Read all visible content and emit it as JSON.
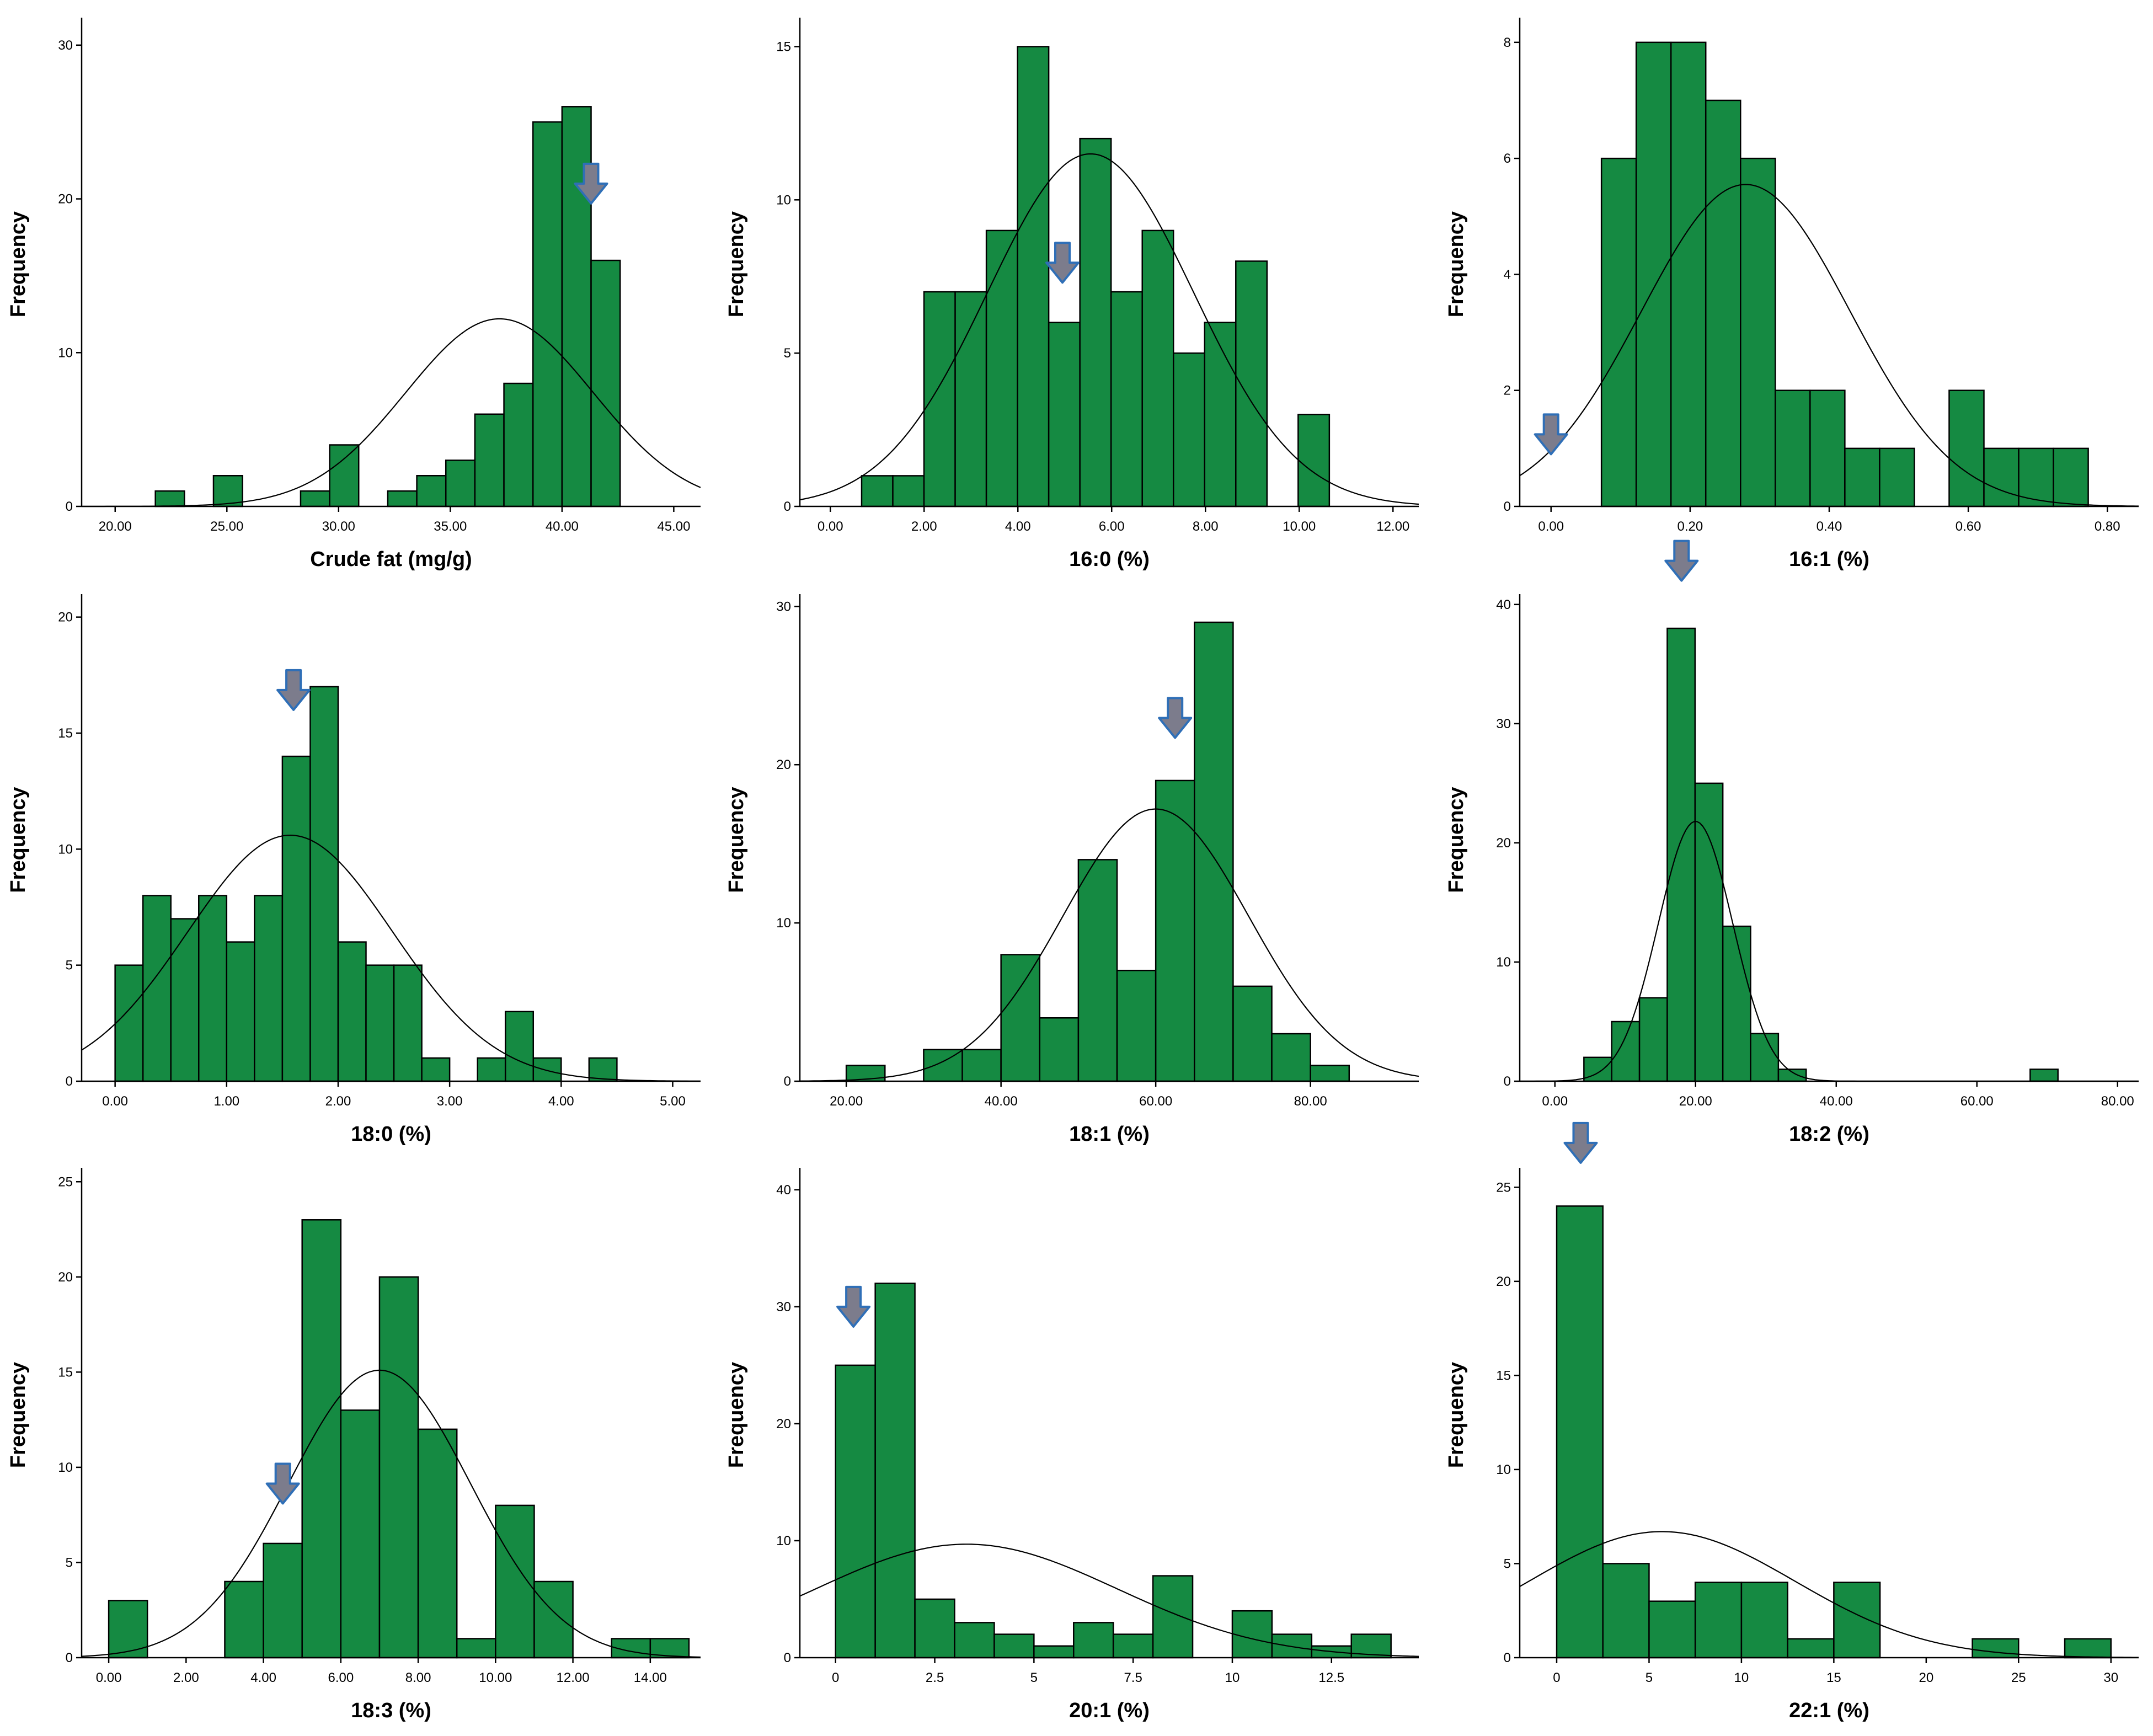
{
  "colors": {
    "bar": "#158A42",
    "arrow_fill": "#7C7C8C",
    "arrow_stroke": "#2F6FB7"
  },
  "chart_data": [
    {
      "type": "bar",
      "subtype": "histogram",
      "title": "",
      "xlabel": "Crude fat (mg/g)",
      "ylabel": "Frequency",
      "xlim": [
        18.5,
        46.2
      ],
      "ylim": [
        0,
        31.5
      ],
      "xticks": [
        20,
        25,
        30,
        35,
        40,
        45
      ],
      "xtick_labels": [
        "20.00",
        "25.00",
        "30.00",
        "35.00",
        "40.00",
        "45.00"
      ],
      "yticks": [
        0,
        10,
        20,
        30
      ],
      "ytick_labels": [
        "0",
        "10",
        "20",
        "30"
      ],
      "bin_width": 1.3,
      "bins": [
        [
          22.45,
          1
        ],
        [
          25.05,
          2
        ],
        [
          28.95,
          1
        ],
        [
          30.25,
          4
        ],
        [
          32.85,
          1
        ],
        [
          34.15,
          2
        ],
        [
          35.45,
          3
        ],
        [
          36.75,
          6
        ],
        [
          38.05,
          8
        ],
        [
          39.35,
          25
        ],
        [
          40.65,
          26
        ],
        [
          41.95,
          16
        ]
      ],
      "normal_curve": {
        "mean": 37.2,
        "sd": 4.2,
        "peak": 12.2
      },
      "arrow_x": 41.3,
      "arrow_y": 19.7
    },
    {
      "type": "bar",
      "subtype": "histogram",
      "title": "",
      "xlabel": "16:0 (%)",
      "ylabel": "Frequency",
      "xlim": [
        -0.65,
        12.55
      ],
      "ylim": [
        0,
        15.8
      ],
      "xticks": [
        0,
        2,
        4,
        6,
        8,
        10,
        12
      ],
      "xtick_labels": [
        "0.00",
        "2.00",
        "4.00",
        "6.00",
        "8.00",
        "10.00",
        "12.00"
      ],
      "yticks": [
        0,
        5,
        10,
        15
      ],
      "ytick_labels": [
        "0",
        "5",
        "10",
        "15"
      ],
      "bin_width": 0.665,
      "bins": [
        [
          1.0,
          1
        ],
        [
          1.665,
          1
        ],
        [
          2.33,
          7
        ],
        [
          2.995,
          7
        ],
        [
          3.66,
          9
        ],
        [
          4.325,
          15
        ],
        [
          4.99,
          6
        ],
        [
          5.655,
          12
        ],
        [
          6.32,
          7
        ],
        [
          6.985,
          9
        ],
        [
          7.65,
          5
        ],
        [
          8.315,
          6
        ],
        [
          8.98,
          8
        ],
        [
          10.31,
          3
        ]
      ],
      "normal_curve": {
        "mean": 5.55,
        "sd": 2.2,
        "peak": 11.5
      },
      "arrow_x": 4.95,
      "arrow_y": 7.3
    },
    {
      "type": "bar",
      "subtype": "histogram",
      "title": "",
      "xlabel": "16:1 (%)",
      "ylabel": "Frequency",
      "xlim": [
        -0.045,
        0.845
      ],
      "ylim": [
        0,
        8.35
      ],
      "xticks": [
        0,
        0.2,
        0.4,
        0.6,
        0.8
      ],
      "xtick_labels": [
        "0.00",
        "0.20",
        "0.40",
        "0.60",
        "0.80"
      ],
      "yticks": [
        0,
        2,
        4,
        6,
        8
      ],
      "ytick_labels": [
        "0",
        "2",
        "4",
        "6",
        "8"
      ],
      "bin_width": 0.05,
      "bins": [
        [
          0.0975,
          6
        ],
        [
          0.1475,
          8
        ],
        [
          0.1975,
          8
        ],
        [
          0.2475,
          7
        ],
        [
          0.2975,
          6
        ],
        [
          0.3475,
          2
        ],
        [
          0.3975,
          2
        ],
        [
          0.4475,
          1
        ],
        [
          0.4975,
          1
        ],
        [
          0.5975,
          2
        ],
        [
          0.6475,
          1
        ],
        [
          0.6975,
          1
        ],
        [
          0.7475,
          1
        ]
      ],
      "normal_curve": {
        "mean": 0.28,
        "sd": 0.15,
        "peak": 5.55
      },
      "arrow_x": 0.0,
      "arrow_y": 0.9
    },
    {
      "type": "bar",
      "subtype": "histogram",
      "title": "",
      "xlabel": "18:0 (%)",
      "ylabel": "Frequency",
      "xlim": [
        -0.3,
        5.25
      ],
      "ylim": [
        0,
        20.8
      ],
      "xticks": [
        0,
        1,
        2,
        3,
        4,
        5
      ],
      "xtick_labels": [
        "0.00",
        "1.00",
        "2.00",
        "3.00",
        "4.00",
        "5.00"
      ],
      "yticks": [
        0,
        5,
        10,
        15,
        20
      ],
      "ytick_labels": [
        "0",
        "5",
        "10",
        "15",
        "20"
      ],
      "bin_width": 0.25,
      "bins": [
        [
          0.125,
          5
        ],
        [
          0.375,
          8
        ],
        [
          0.625,
          7
        ],
        [
          0.875,
          8
        ],
        [
          1.125,
          6
        ],
        [
          1.375,
          8
        ],
        [
          1.625,
          14
        ],
        [
          1.875,
          17
        ],
        [
          2.125,
          6
        ],
        [
          2.375,
          5
        ],
        [
          2.625,
          5
        ],
        [
          2.875,
          1
        ],
        [
          3.375,
          1
        ],
        [
          3.625,
          3
        ],
        [
          3.875,
          1
        ],
        [
          4.375,
          1
        ]
      ],
      "normal_curve": {
        "mean": 1.57,
        "sd": 0.92,
        "peak": 10.6
      },
      "arrow_x": 1.6,
      "arrow_y": 16.0
    },
    {
      "type": "bar",
      "subtype": "histogram",
      "title": "",
      "xlabel": "18:1 (%)",
      "ylabel": "Frequency",
      "xlim": [
        14,
        94
      ],
      "ylim": [
        0,
        30.5
      ],
      "xticks": [
        20,
        40,
        60,
        80
      ],
      "xtick_labels": [
        "20.00",
        "40.00",
        "60.00",
        "80.00"
      ],
      "yticks": [
        0,
        10,
        20,
        30
      ],
      "ytick_labels": [
        "0",
        "10",
        "20",
        "30"
      ],
      "bin_width": 5.0,
      "bins": [
        [
          22.5,
          1
        ],
        [
          32.5,
          2
        ],
        [
          37.5,
          2
        ],
        [
          42.5,
          8
        ],
        [
          47.5,
          4
        ],
        [
          52.5,
          14
        ],
        [
          57.5,
          7
        ],
        [
          62.5,
          19
        ],
        [
          67.5,
          29
        ],
        [
          72.5,
          6
        ],
        [
          77.5,
          3
        ],
        [
          82.5,
          1
        ]
      ],
      "normal_curve": {
        "mean": 60,
        "sd": 12,
        "peak": 17.2
      },
      "arrow_x": 62.5,
      "arrow_y": 21.7
    },
    {
      "type": "bar",
      "subtype": "histogram",
      "title": "",
      "xlabel": "18:2 (%)",
      "ylabel": "Frequency",
      "xlim": [
        -5,
        83
      ],
      "ylim": [
        0,
        40.5
      ],
      "xticks": [
        0,
        20,
        40,
        60,
        80
      ],
      "xtick_labels": [
        "0.00",
        "20.00",
        "40.00",
        "60.00",
        "80.00"
      ],
      "yticks": [
        0,
        10,
        20,
        30,
        40
      ],
      "ytick_labels": [
        "0",
        "10",
        "20",
        "30",
        "40"
      ],
      "bin_width": 3.95,
      "bins": [
        [
          6.1,
          2
        ],
        [
          10.05,
          5
        ],
        [
          14.0,
          7
        ],
        [
          17.95,
          38
        ],
        [
          21.9,
          25
        ],
        [
          25.85,
          13
        ],
        [
          29.8,
          4
        ],
        [
          33.75,
          1
        ],
        [
          69.55,
          1
        ]
      ],
      "normal_curve": {
        "mean": 20,
        "sd": 5.3,
        "peak": 21.8
      },
      "arrow_x": 18.0,
      "arrow_y": 42.0
    },
    {
      "type": "bar",
      "subtype": "histogram",
      "title": "",
      "xlabel": "18:3 (%)",
      "ylabel": "Frequency",
      "xlim": [
        -0.7,
        15.3
      ],
      "ylim": [
        0,
        25.5
      ],
      "xticks": [
        0,
        2,
        4,
        6,
        8,
        10,
        12,
        14
      ],
      "xtick_labels": [
        "0.00",
        "2.00",
        "4.00",
        "6.00",
        "8.00",
        "10.00",
        "12.00",
        "14.00"
      ],
      "yticks": [
        0,
        5,
        10,
        15,
        20,
        25
      ],
      "ytick_labels": [
        "0",
        "5",
        "10",
        "15",
        "20",
        "25"
      ],
      "bin_width": 1.0,
      "bins": [
        [
          0.5,
          3
        ],
        [
          3.5,
          4
        ],
        [
          4.5,
          6
        ],
        [
          5.5,
          23
        ],
        [
          6.5,
          13
        ],
        [
          7.5,
          20
        ],
        [
          8.5,
          12
        ],
        [
          9.5,
          1
        ],
        [
          10.5,
          8
        ],
        [
          11.5,
          4
        ],
        [
          13.5,
          1
        ],
        [
          14.5,
          1
        ]
      ],
      "normal_curve": {
        "mean": 7.0,
        "sd": 2.35,
        "peak": 15.1
      },
      "arrow_x": 4.5,
      "arrow_y": 8.1
    },
    {
      "type": "bar",
      "subtype": "histogram",
      "title": "",
      "xlabel": "20:1 (%)",
      "ylabel": "Frequency",
      "xlim": [
        -0.9,
        14.7
      ],
      "ylim": [
        0,
        41.5
      ],
      "xticks": [
        0,
        2.5,
        5,
        7.5,
        10,
        12.5
      ],
      "xtick_labels": [
        "0",
        "2.5",
        "5",
        "7.5",
        "10",
        "12.5"
      ],
      "yticks": [
        0,
        10,
        20,
        30,
        40
      ],
      "ytick_labels": [
        "0",
        "10",
        "20",
        "30",
        "40"
      ],
      "bin_width": 1.0,
      "bins": [
        [
          0.5,
          25
        ],
        [
          1.5,
          32
        ],
        [
          2.5,
          5
        ],
        [
          3.5,
          3
        ],
        [
          4.5,
          2
        ],
        [
          5.5,
          1
        ],
        [
          6.5,
          3
        ],
        [
          7.5,
          2
        ],
        [
          8.5,
          7
        ],
        [
          10.5,
          4
        ],
        [
          11.5,
          2
        ],
        [
          12.5,
          1
        ],
        [
          13.5,
          2
        ]
      ],
      "normal_curve": {
        "mean": 3.3,
        "sd": 3.8,
        "peak": 9.7
      },
      "arrow_x": 0.45,
      "arrow_y": 28.3
    },
    {
      "type": "bar",
      "subtype": "histogram",
      "title": "",
      "xlabel": "22:1 (%)",
      "ylabel": "Frequency",
      "xlim": [
        -2,
        31.5
      ],
      "ylim": [
        0,
        25.8
      ],
      "xticks": [
        0,
        5,
        10,
        15,
        20,
        25,
        30
      ],
      "xtick_labels": [
        "0",
        "5",
        "10",
        "15",
        "20",
        "25",
        "30"
      ],
      "yticks": [
        0,
        5,
        10,
        15,
        20,
        25
      ],
      "ytick_labels": [
        "0",
        "5",
        "10",
        "15",
        "20",
        "25"
      ],
      "bin_width": 2.5,
      "bins": [
        [
          1.25,
          24
        ],
        [
          3.75,
          5
        ],
        [
          6.25,
          3
        ],
        [
          8.75,
          4
        ],
        [
          11.25,
          4
        ],
        [
          13.75,
          1
        ],
        [
          16.25,
          4
        ],
        [
          23.75,
          1
        ],
        [
          28.75,
          1
        ]
      ],
      "normal_curve": {
        "mean": 5.7,
        "sd": 7.2,
        "peak": 6.7
      },
      "arrow_x": 1.3,
      "arrow_y": 26.3
    }
  ]
}
